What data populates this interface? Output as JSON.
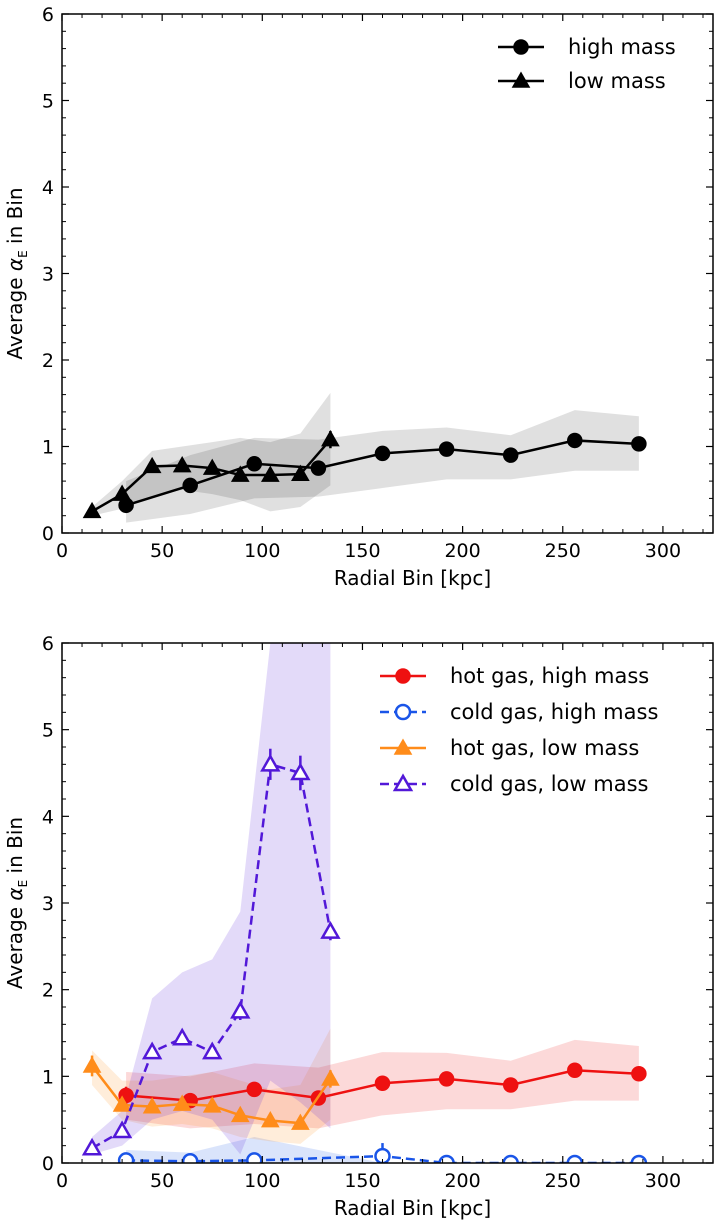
{
  "chart_data": [
    {
      "type": "line",
      "xlabel": "Radial Bin [kpc]",
      "ylabel_prefix": "Average ",
      "ylabel_symbol": "α",
      "ylabel_subscript": "E",
      "ylabel_suffix": " in Bin",
      "xlim": [
        0,
        325
      ],
      "ylim": [
        0,
        6
      ],
      "xticks": [
        0,
        50,
        100,
        150,
        200,
        250,
        300
      ],
      "yticks": [
        0,
        1,
        2,
        3,
        4,
        5,
        6
      ],
      "legend_position": "top-right",
      "series": [
        {
          "name": "high mass",
          "color": "#000000",
          "marker": "circle",
          "filled": true,
          "dashed": false,
          "x": [
            32,
            64,
            96,
            128,
            160,
            192,
            224,
            256,
            288
          ],
          "y": [
            0.32,
            0.55,
            0.8,
            0.75,
            0.92,
            0.97,
            0.9,
            1.07,
            1.03
          ],
          "band_low": [
            0.12,
            0.22,
            0.4,
            0.42,
            0.52,
            0.62,
            0.62,
            0.72,
            0.72
          ],
          "band_high": [
            0.6,
            0.9,
            1.1,
            1.08,
            1.18,
            1.22,
            1.13,
            1.42,
            1.35
          ],
          "error": [
            0.0,
            0.0,
            0.08,
            0.0,
            0.0,
            0.0,
            0.0,
            0.0,
            0.0
          ]
        },
        {
          "name": "low mass",
          "color": "#000000",
          "marker": "triangle",
          "filled": true,
          "dashed": false,
          "x": [
            15,
            30,
            45,
            60,
            75,
            89,
            104,
            119,
            134
          ],
          "y": [
            0.25,
            0.45,
            0.77,
            0.78,
            0.75,
            0.67,
            0.67,
            0.68,
            1.08
          ],
          "band_low": [
            0.2,
            0.28,
            0.42,
            0.5,
            0.45,
            0.38,
            0.25,
            0.3,
            0.55
          ],
          "band_high": [
            0.3,
            0.6,
            0.95,
            1.0,
            1.05,
            1.1,
            1.05,
            1.15,
            1.62
          ],
          "error": [
            0.0,
            0.05,
            0.04,
            0.04,
            0.04,
            0.04,
            0.04,
            0.04,
            0.1
          ]
        }
      ]
    },
    {
      "type": "line",
      "xlabel": "Radial Bin [kpc]",
      "ylabel_prefix": "Average ",
      "ylabel_symbol": "α",
      "ylabel_subscript": "E",
      "ylabel_suffix": " in Bin",
      "xlim": [
        0,
        325
      ],
      "ylim": [
        0,
        6
      ],
      "xticks": [
        0,
        50,
        100,
        150,
        200,
        250,
        300
      ],
      "yticks": [
        0,
        1,
        2,
        3,
        4,
        5,
        6
      ],
      "legend_position": "top-right",
      "series": [
        {
          "name": "hot gas, high mass",
          "color": "#ee1111",
          "marker": "circle",
          "filled": true,
          "dashed": false,
          "x": [
            32,
            64,
            96,
            128,
            160,
            192,
            224,
            256,
            288
          ],
          "y": [
            0.78,
            0.72,
            0.85,
            0.75,
            0.92,
            0.97,
            0.9,
            1.07,
            1.03
          ],
          "band_low": [
            0.5,
            0.4,
            0.45,
            0.4,
            0.55,
            0.62,
            0.62,
            0.72,
            0.72
          ],
          "band_high": [
            1.05,
            1.0,
            1.15,
            1.1,
            1.28,
            1.27,
            1.18,
            1.42,
            1.35
          ],
          "error": [
            0.1,
            0.07,
            0.08,
            0.0,
            0.0,
            0.0,
            0.0,
            0.0,
            0.0
          ]
        },
        {
          "name": "cold gas, high mass",
          "color": "#1a55e8",
          "marker": "circle",
          "filled": false,
          "dashed": true,
          "x": [
            32,
            64,
            96,
            160,
            192,
            224,
            256,
            288
          ],
          "y": [
            0.03,
            0.02,
            0.03,
            0.08,
            0.0,
            0.0,
            0.0,
            0.0
          ],
          "band_low": [
            0.0,
            0.0,
            0.0,
            0.0,
            0.0,
            0.0,
            0.0,
            0.0
          ],
          "band_high": [
            0.15,
            0.12,
            0.3,
            0.0,
            0.0,
            0.0,
            0.0,
            0.0
          ],
          "error": [
            0.0,
            0.0,
            0.05,
            0.15,
            0.0,
            0.0,
            0.0,
            0.0
          ]
        },
        {
          "name": "hot gas, low mass",
          "color": "#ff8c1a",
          "marker": "triangle",
          "filled": true,
          "dashed": false,
          "x": [
            15,
            30,
            45,
            60,
            75,
            89,
            104,
            119,
            134
          ],
          "y": [
            1.12,
            0.67,
            0.65,
            0.68,
            0.66,
            0.55,
            0.49,
            0.46,
            0.97
          ],
          "band_low": [
            0.9,
            0.5,
            0.42,
            0.45,
            0.4,
            0.3,
            0.25,
            0.22,
            0.5
          ],
          "band_high": [
            1.3,
            0.95,
            0.95,
            1.0,
            1.05,
            0.95,
            0.85,
            0.9,
            1.55
          ],
          "error": [
            0.12,
            0.05,
            0.05,
            0.05,
            0.05,
            0.05,
            0.05,
            0.05,
            0.1
          ]
        },
        {
          "name": "cold gas, low mass",
          "color": "#5218d8",
          "marker": "triangle",
          "filled": false,
          "dashed": true,
          "x": [
            15,
            30,
            45,
            60,
            75,
            89,
            104,
            119,
            134
          ],
          "y": [
            0.17,
            0.37,
            1.28,
            1.44,
            1.28,
            1.75,
            4.6,
            4.5,
            2.67
          ],
          "band_low": [
            0.1,
            0.2,
            0.5,
            0.6,
            0.5,
            0.1,
            0.95,
            0.7,
            0.4
          ],
          "band_high": [
            0.3,
            0.6,
            1.9,
            2.2,
            2.35,
            2.9,
            6.0,
            6.0,
            6.0
          ],
          "error": [
            0.03,
            0.05,
            0.06,
            0.07,
            0.06,
            0.1,
            0.18,
            0.2,
            0.1
          ]
        }
      ]
    }
  ]
}
